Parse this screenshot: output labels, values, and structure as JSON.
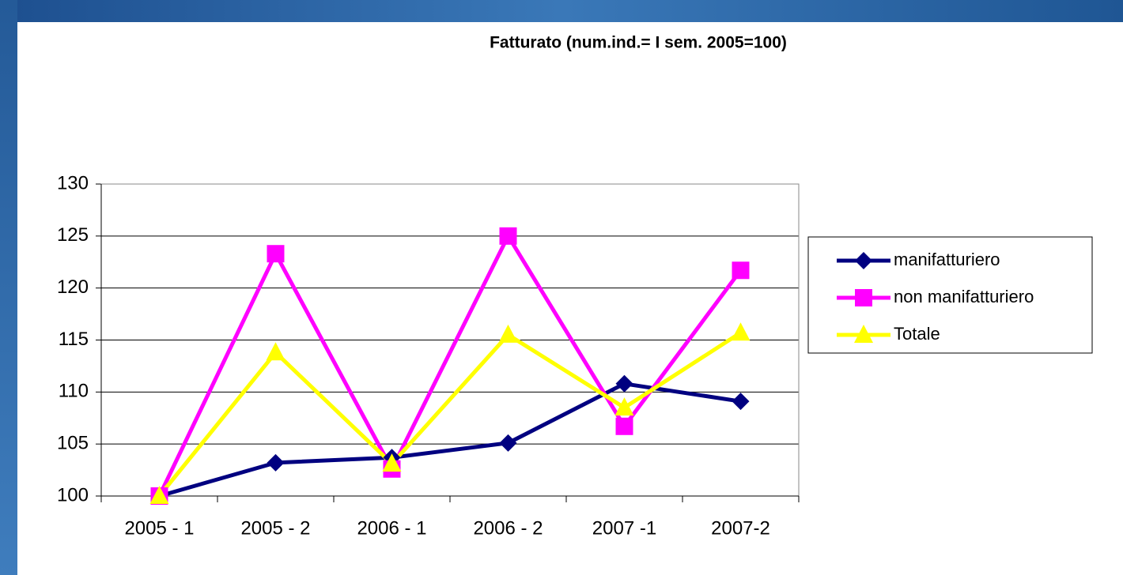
{
  "chart_data": {
    "type": "line",
    "title": "Fatturato (num.ind.= I sem. 2005=100)",
    "categories": [
      "2005 - 1",
      "2005 - 2",
      "2006 - 1",
      "2006 - 2",
      "2007 -1",
      "2007-2"
    ],
    "series": [
      {
        "name": "manifatturiero",
        "color": "#000080",
        "marker": "diamond",
        "values": [
          100,
          103.2,
          103.7,
          105.1,
          110.8,
          109.1
        ]
      },
      {
        "name": "non manifatturiero",
        "color": "#ff00ff",
        "marker": "square",
        "values": [
          100,
          123.3,
          102.6,
          125,
          106.7,
          121.7
        ]
      },
      {
        "name": "Totale",
        "color": "#ffff00",
        "marker": "triangle",
        "values": [
          100,
          113.8,
          103.1,
          115.5,
          108.5,
          115.7
        ]
      }
    ],
    "ylim": [
      100,
      130
    ],
    "yticks": [
      100,
      105,
      110,
      115,
      120,
      125,
      130
    ],
    "grid": true,
    "legend": "right"
  }
}
